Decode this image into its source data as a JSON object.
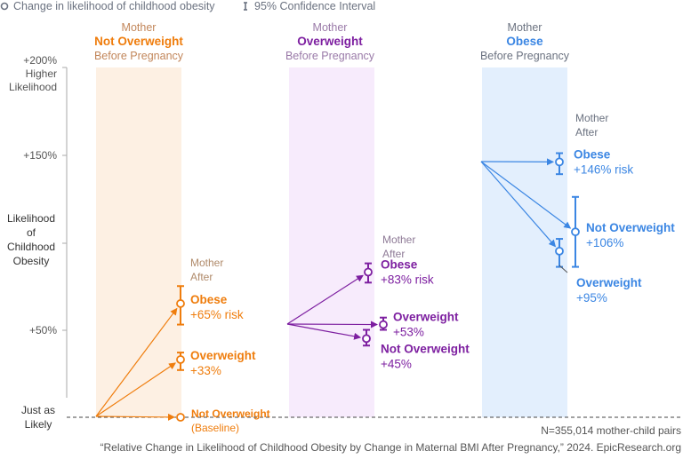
{
  "legend": {
    "point_label": "Change in likelihood of childhood obesity",
    "ci_label": "95% Confidence Interval"
  },
  "y_axis": {
    "top_label": "+200%",
    "top_sub1": "Higher",
    "top_sub2": "Likelihood",
    "label150": "+150%",
    "label50": "+50%",
    "title1": "Likelihood",
    "title2": "of",
    "title3": "Childhood",
    "title4": "Obesity",
    "base1": "Just as",
    "base2": "Likely"
  },
  "footer": {
    "n": "N=355,014 mother-child pairs",
    "source": "“Relative Change in Likelihood of Childhood Obesity by Change in Maternal BMI After Pregnancy,” 2024. EpicResearch.org"
  },
  "chart_data": {
    "type": "scatter",
    "title": "Relative change in likelihood of childhood obesity",
    "ylabel": "Likelihood of Childhood Obesity",
    "ylim": [
      0,
      200
    ],
    "yticks": [
      0,
      50,
      150,
      200
    ],
    "groups": [
      {
        "top": "Mother",
        "name": "Not Overweight",
        "bottom": "Before Pregnancy",
        "color": "#ef7d0d",
        "band": "#fdf0e3",
        "after1": "Mother",
        "after2": "After",
        "points": [
          {
            "label": "Obese",
            "value_text": "+65% risk",
            "value": 65,
            "ci": [
              53,
              75
            ]
          },
          {
            "label": "Overweight",
            "value_text": "+33%",
            "value": 33,
            "ci": [
              27,
              37
            ]
          },
          {
            "label": "Not Overweight",
            "value_text": "(Baseline)",
            "value": 0,
            "ci": null
          }
        ]
      },
      {
        "top": "Mother",
        "name": "Overweight",
        "bottom": "Before Pregnancy",
        "color": "#7d1fa0",
        "band": "#f7ebfc",
        "after1": "Mother",
        "after2": "After",
        "points": [
          {
            "label": "Obese",
            "value_text": "+83% risk",
            "value": 83,
            "ci": [
              77,
              88
            ]
          },
          {
            "label": "Overweight",
            "value_text": "+53%",
            "value": 53,
            "ci": [
              50,
              57
            ]
          },
          {
            "label": "Not Overweight",
            "value_text": "+45%",
            "value": 45,
            "ci": [
              41,
              50
            ]
          }
        ]
      },
      {
        "top": "Mother",
        "name": "Obese",
        "bottom": "Before Pregnancy",
        "color": "#3b86e3",
        "band": "#e3effd",
        "after1": "Mother",
        "after2": "After",
        "points": [
          {
            "label": "Obese",
            "value_text": "+146% risk",
            "value": 146,
            "ci": [
              139,
              151
            ]
          },
          {
            "label": "Not Overweight",
            "value_text": "+106%",
            "value": 106,
            "ci": [
              86,
              126
            ]
          },
          {
            "label": "Overweight",
            "value_text": "+95%",
            "value": 95,
            "ci": [
              86,
              102
            ]
          }
        ]
      }
    ]
  }
}
